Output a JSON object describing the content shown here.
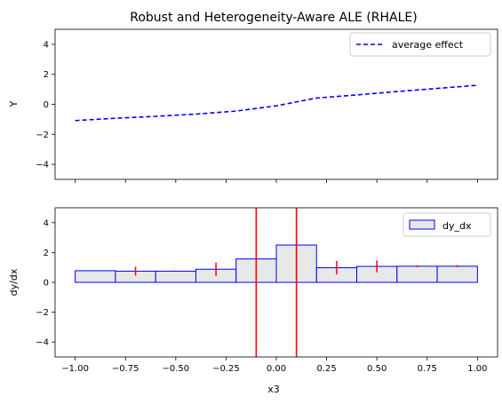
{
  "chart_data": [
    {
      "type": "line",
      "title": "Robust and Heterogeneity-Aware ALE (RHALE)",
      "xlabel": "",
      "ylabel": "Y",
      "xlim": [
        -1.1,
        1.1
      ],
      "ylim": [
        -5,
        5
      ],
      "xticks": [
        -1.0,
        -0.75,
        -0.5,
        -0.25,
        0.0,
        0.25,
        0.5,
        0.75,
        1.0
      ],
      "xtick_labels_shown": false,
      "yticks": [
        -4,
        -2,
        0,
        2,
        4
      ],
      "ytick_labels": [
        "−4",
        "−2",
        "0",
        "2",
        "4"
      ],
      "grid": false,
      "legend_position": "top-right",
      "series": [
        {
          "name": "average effect",
          "color": "#0000ff",
          "style": "dashed",
          "x": [
            -1.0,
            -0.8,
            -0.6,
            -0.4,
            -0.2,
            0.0,
            0.2,
            0.4,
            0.6,
            0.8,
            1.0
          ],
          "y": [
            -1.08,
            -0.93,
            -0.8,
            -0.65,
            -0.45,
            -0.1,
            0.42,
            0.63,
            0.85,
            1.06,
            1.27
          ]
        }
      ]
    },
    {
      "type": "bar",
      "title": "",
      "xlabel": "x3",
      "ylabel": "dy/dx",
      "xlim": [
        -1.1,
        1.1
      ],
      "ylim": [
        -5,
        5
      ],
      "xticks": [
        -1.0,
        -0.75,
        -0.5,
        -0.25,
        0.0,
        0.25,
        0.5,
        0.75,
        1.0
      ],
      "xtick_labels": [
        "−1.00",
        "−0.75",
        "−0.50",
        "−0.25",
        "0.00",
        "0.25",
        "0.50",
        "0.75",
        "1.00"
      ],
      "yticks": [
        -4,
        -2,
        0,
        2,
        4
      ],
      "ytick_labels": [
        "−4",
        "−2",
        "0",
        "2",
        "4"
      ],
      "grid": false,
      "legend_position": "top-right",
      "bar_fill": "#e8e8e8",
      "bar_edge": "#0000ff",
      "error_color": "#ff0000",
      "vline_color": "#ff0000",
      "series": [
        {
          "name": "dy_dx",
          "bins": [
            {
              "x0": -1.0,
              "x1": -0.8,
              "value": 0.78,
              "error": 0.0
            },
            {
              "x0": -0.8,
              "x1": -0.6,
              "value": 0.75,
              "error": 0.3
            },
            {
              "x0": -0.6,
              "x1": -0.4,
              "value": 0.75,
              "error": 0.05
            },
            {
              "x0": -0.4,
              "x1": -0.2,
              "value": 0.88,
              "error": 0.45
            },
            {
              "x0": -0.2,
              "x1": 0.0,
              "value": 1.57,
              "error": 0.0
            },
            {
              "x0": 0.0,
              "x1": 0.2,
              "value": 2.5,
              "error": 0.0
            },
            {
              "x0": 0.2,
              "x1": 0.4,
              "value": 0.98,
              "error": 0.45
            },
            {
              "x0": 0.4,
              "x1": 0.6,
              "value": 1.07,
              "error": 0.4
            },
            {
              "x0": 0.6,
              "x1": 0.8,
              "value": 1.08,
              "error": 0.07
            },
            {
              "x0": 0.8,
              "x1": 1.0,
              "value": 1.08,
              "error": 0.07
            }
          ]
        }
      ],
      "vlines": [
        -0.1,
        0.1
      ]
    }
  ]
}
